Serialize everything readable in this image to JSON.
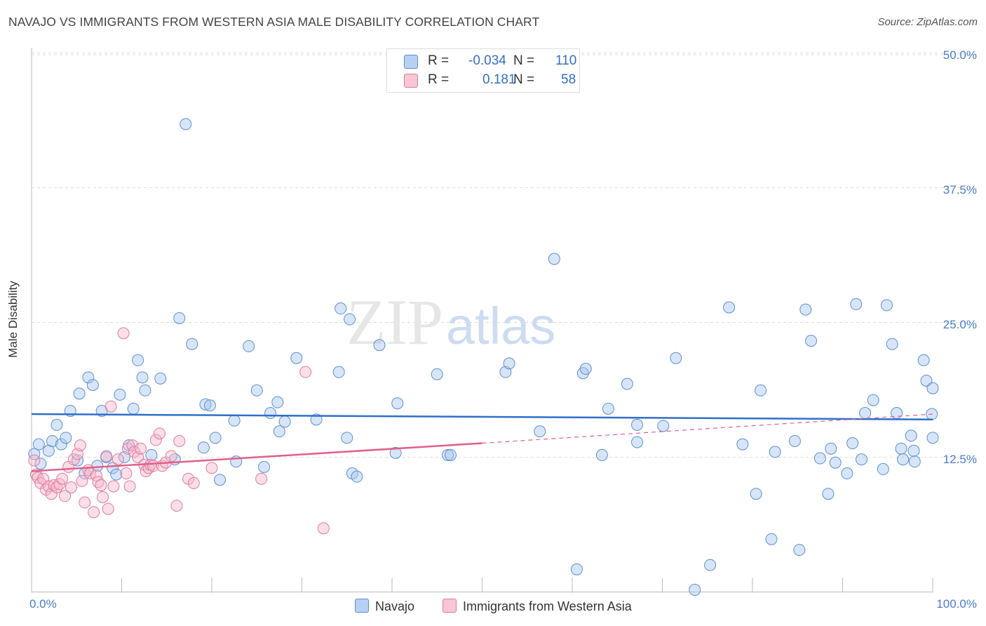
{
  "title": "NAVAJO VS IMMIGRANTS FROM WESTERN ASIA MALE DISABILITY CORRELATION CHART",
  "source": "Source: ZipAtlas.com",
  "watermark": {
    "zip": "ZIP",
    "atlas": "atlas"
  },
  "legend": {
    "series1": {
      "r_label": "R =",
      "r_value": "-0.034",
      "n_label": "N =",
      "n_value": "110"
    },
    "series2": {
      "r_label": "R =",
      "r_value": "0.181",
      "n_label": "N =",
      "n_value": "58"
    }
  },
  "bottom_legend": {
    "series1": "Navajo",
    "series2": "Immigrants from Western Asia"
  },
  "colors": {
    "navajo_fill": "#a9c6ee",
    "navajo_stroke": "#5a8fd6",
    "navajo_line": "#2f6fcb",
    "immig_fill": "#f5b9cb",
    "immig_stroke": "#e07a9c",
    "immig_line": "#e0608a",
    "grid": "#dddddd",
    "tick_text": "#4a7cc7"
  },
  "chart_data": {
    "type": "scatter",
    "title": "NAVAJO VS IMMIGRANTS FROM WESTERN ASIA MALE DISABILITY CORRELATION CHART",
    "xlabel": "",
    "ylabel": "Male Disability",
    "xlim": [
      0,
      100
    ],
    "ylim": [
      0,
      52
    ],
    "x_tick_labels": [
      "0.0%",
      "100.0%"
    ],
    "y_ticks": [
      12.5,
      25.0,
      37.5,
      50.0
    ],
    "y_tick_labels": [
      "12.5%",
      "25.0%",
      "37.5%",
      "50.0%"
    ],
    "series": [
      {
        "name": "Navajo",
        "r": -0.034,
        "n": 110,
        "trend": {
          "x": [
            0,
            100
          ],
          "y": [
            16.5,
            16.0
          ],
          "dashed_extension": false
        },
        "points": [
          [
            0.3,
            12.8
          ],
          [
            0.8,
            13.7
          ],
          [
            1.0,
            11.9
          ],
          [
            1.9,
            13.1
          ],
          [
            2.3,
            14.0
          ],
          [
            2.8,
            15.5
          ],
          [
            3.3,
            13.7
          ],
          [
            3.8,
            14.3
          ],
          [
            4.3,
            16.8
          ],
          [
            5.1,
            12.2
          ],
          [
            5.3,
            18.4
          ],
          [
            5.9,
            11.0
          ],
          [
            6.3,
            19.9
          ],
          [
            6.8,
            19.2
          ],
          [
            7.3,
            11.7
          ],
          [
            7.8,
            16.8
          ],
          [
            8.3,
            12.5
          ],
          [
            9.0,
            11.5
          ],
          [
            9.4,
            10.9
          ],
          [
            9.8,
            18.3
          ],
          [
            10.3,
            12.5
          ],
          [
            10.8,
            13.6
          ],
          [
            11.3,
            17.0
          ],
          [
            11.8,
            21.5
          ],
          [
            12.3,
            19.9
          ],
          [
            12.6,
            18.7
          ],
          [
            13.3,
            12.7
          ],
          [
            14.3,
            19.8
          ],
          [
            15.9,
            12.3
          ],
          [
            16.4,
            25.4
          ],
          [
            17.1,
            43.4
          ],
          [
            17.8,
            23.0
          ],
          [
            19.1,
            13.4
          ],
          [
            19.3,
            17.4
          ],
          [
            19.8,
            17.3
          ],
          [
            20.4,
            14.3
          ],
          [
            20.9,
            10.4
          ],
          [
            22.5,
            15.9
          ],
          [
            22.7,
            12.1
          ],
          [
            24.1,
            22.8
          ],
          [
            25.0,
            18.7
          ],
          [
            25.8,
            11.6
          ],
          [
            26.5,
            16.6
          ],
          [
            27.3,
            17.6
          ],
          [
            27.5,
            14.9
          ],
          [
            28.1,
            15.8
          ],
          [
            29.4,
            21.7
          ],
          [
            31.6,
            16.0
          ],
          [
            34.1,
            20.4
          ],
          [
            34.3,
            26.3
          ],
          [
            35.0,
            14.3
          ],
          [
            35.3,
            25.3
          ],
          [
            35.6,
            11.0
          ],
          [
            36.1,
            10.7
          ],
          [
            38.6,
            22.9
          ],
          [
            40.4,
            12.9
          ],
          [
            40.6,
            17.5
          ],
          [
            45.0,
            20.2
          ],
          [
            46.2,
            12.7
          ],
          [
            46.5,
            12.7
          ],
          [
            52.6,
            20.4
          ],
          [
            53.0,
            21.2
          ],
          [
            56.4,
            14.9
          ],
          [
            58.0,
            30.9
          ],
          [
            60.5,
            2.1
          ],
          [
            61.2,
            20.3
          ],
          [
            61.5,
            20.7
          ],
          [
            64.0,
            17.0
          ],
          [
            63.3,
            12.7
          ],
          [
            66.1,
            19.3
          ],
          [
            67.2,
            13.9
          ],
          [
            67.2,
            15.5
          ],
          [
            70.1,
            15.4
          ],
          [
            71.5,
            21.7
          ],
          [
            73.6,
            0.2
          ],
          [
            75.3,
            2.5
          ],
          [
            77.4,
            26.4
          ],
          [
            78.9,
            13.7
          ],
          [
            80.4,
            9.1
          ],
          [
            80.9,
            18.7
          ],
          [
            82.1,
            4.9
          ],
          [
            82.5,
            13.0
          ],
          [
            84.7,
            14.0
          ],
          [
            85.2,
            3.9
          ],
          [
            85.9,
            26.2
          ],
          [
            86.5,
            23.3
          ],
          [
            87.5,
            12.4
          ],
          [
            88.4,
            9.1
          ],
          [
            88.7,
            13.3
          ],
          [
            89.2,
            12.0
          ],
          [
            90.5,
            11.0
          ],
          [
            91.1,
            13.8
          ],
          [
            91.5,
            26.7
          ],
          [
            92.1,
            12.3
          ],
          [
            92.5,
            16.6
          ],
          [
            93.4,
            17.8
          ],
          [
            94.5,
            11.4
          ],
          [
            94.9,
            26.6
          ],
          [
            95.5,
            23.0
          ],
          [
            96.0,
            16.6
          ],
          [
            96.5,
            13.3
          ],
          [
            96.7,
            12.3
          ],
          [
            97.6,
            14.5
          ],
          [
            97.9,
            13.1
          ],
          [
            98.0,
            12.1
          ],
          [
            99.0,
            21.5
          ],
          [
            99.3,
            19.6
          ],
          [
            99.9,
            16.5
          ],
          [
            100.0,
            18.9
          ],
          [
            100.0,
            14.3
          ]
        ]
      },
      {
        "name": "Immigrants from Western Asia",
        "r": 0.181,
        "n": 58,
        "trend": {
          "x": [
            0,
            50
          ],
          "y": [
            11.2,
            13.8
          ],
          "dashed_extension": {
            "x": [
              50,
              100
            ],
            "y": [
              13.8,
              16.5
            ]
          }
        },
        "points": [
          [
            0.3,
            12.2
          ],
          [
            0.5,
            10.9
          ],
          [
            0.7,
            10.6
          ],
          [
            1.0,
            10.1
          ],
          [
            1.3,
            10.5
          ],
          [
            1.6,
            9.5
          ],
          [
            1.9,
            9.8
          ],
          [
            2.2,
            9.1
          ],
          [
            2.5,
            9.9
          ],
          [
            2.8,
            9.7
          ],
          [
            3.1,
            10.0
          ],
          [
            3.4,
            10.5
          ],
          [
            3.7,
            8.9
          ],
          [
            4.1,
            11.6
          ],
          [
            4.4,
            9.7
          ],
          [
            4.7,
            12.3
          ],
          [
            5.1,
            12.8
          ],
          [
            5.4,
            13.6
          ],
          [
            5.6,
            10.3
          ],
          [
            5.9,
            8.3
          ],
          [
            6.3,
            11.3
          ],
          [
            6.5,
            11.0
          ],
          [
            6.9,
            7.4
          ],
          [
            7.2,
            10.8
          ],
          [
            7.4,
            10.2
          ],
          [
            7.7,
            9.9
          ],
          [
            7.9,
            8.8
          ],
          [
            8.3,
            12.6
          ],
          [
            8.5,
            7.7
          ],
          [
            8.8,
            17.2
          ],
          [
            9.1,
            9.8
          ],
          [
            9.6,
            12.3
          ],
          [
            10.2,
            24.0
          ],
          [
            10.5,
            11.0
          ],
          [
            10.7,
            13.3
          ],
          [
            10.9,
            9.8
          ],
          [
            11.2,
            13.6
          ],
          [
            11.4,
            13.0
          ],
          [
            11.8,
            12.5
          ],
          [
            12.1,
            13.3
          ],
          [
            12.5,
            11.8
          ],
          [
            12.7,
            11.2
          ],
          [
            13.0,
            11.5
          ],
          [
            13.2,
            11.8
          ],
          [
            13.5,
            11.7
          ],
          [
            13.8,
            14.1
          ],
          [
            14.2,
            14.7
          ],
          [
            14.5,
            11.7
          ],
          [
            14.9,
            12.0
          ],
          [
            15.5,
            12.6
          ],
          [
            16.1,
            8.0
          ],
          [
            16.4,
            14.0
          ],
          [
            17.4,
            10.5
          ],
          [
            18.0,
            10.1
          ],
          [
            20.0,
            11.5
          ],
          [
            25.5,
            10.5
          ],
          [
            30.4,
            20.4
          ],
          [
            32.4,
            5.9
          ]
        ]
      }
    ],
    "extra_points_note": ""
  }
}
